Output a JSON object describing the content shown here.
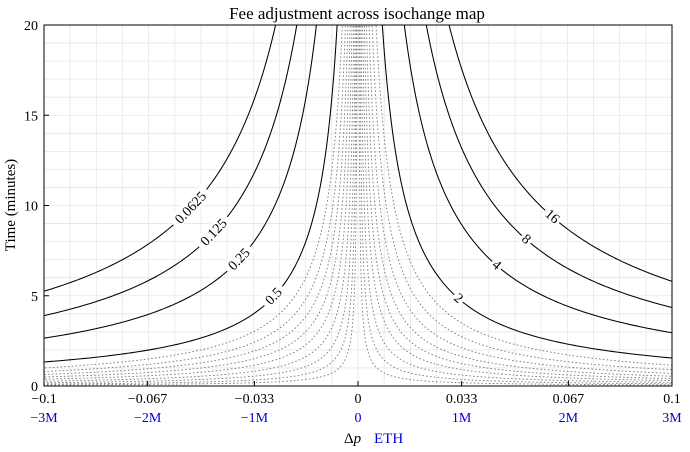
{
  "chart_data": {
    "type": "line",
    "title": "Fee adjustment across isochange map",
    "xlabel": "Δp",
    "xlabel_symbol": "Δ",
    "xlabel_var": "p",
    "xlabel_secondary": "ETH",
    "ylabel": "Time (minutes)",
    "xlim": [
      -0.1,
      0.1
    ],
    "ylim": [
      0,
      20
    ],
    "grid": true,
    "x_ticks": [
      -0.1,
      -0.067,
      -0.033,
      0,
      0.033,
      0.067,
      0.1
    ],
    "x_tick_labels": [
      "−0.1",
      "−0.067",
      "−0.033",
      "0",
      "0.033",
      "0.067",
      "0.1"
    ],
    "x2_tick_labels": [
      "−3M",
      "−2M",
      "−1M",
      "0",
      "1M",
      "2M",
      "3M"
    ],
    "x2_color": "#0000dd",
    "y_ticks": [
      0,
      5,
      10,
      15,
      20
    ],
    "y_tick_labels": [
      "0",
      "5",
      "10",
      "15",
      "20"
    ],
    "curve_model": "time = k / |Δp|",
    "series": [
      {
        "name": "0.0625",
        "side": "left",
        "k": 0.525,
        "style": "solid",
        "label": "0.0625"
      },
      {
        "name": "0.125",
        "side": "left",
        "k": 0.39,
        "style": "solid",
        "label": "0.125"
      },
      {
        "name": "0.25",
        "side": "left",
        "k": 0.265,
        "style": "solid",
        "label": "0.25"
      },
      {
        "name": "0.5",
        "side": "left",
        "k": 0.133,
        "style": "solid",
        "label": "0.5"
      },
      {
        "name": "16",
        "side": "right",
        "k": 0.58,
        "style": "solid",
        "label": "16"
      },
      {
        "name": "8",
        "side": "right",
        "k": 0.435,
        "style": "solid",
        "label": "8"
      },
      {
        "name": "4",
        "side": "right",
        "k": 0.295,
        "style": "solid",
        "label": "4"
      },
      {
        "name": "2",
        "side": "right",
        "k": 0.155,
        "style": "solid",
        "label": "2"
      },
      {
        "name": "dotted-l1",
        "side": "left",
        "k": 0.1,
        "style": "dotted"
      },
      {
        "name": "dotted-l2",
        "side": "left",
        "k": 0.08,
        "style": "dotted"
      },
      {
        "name": "dotted-l3",
        "side": "left",
        "k": 0.064,
        "style": "dotted"
      },
      {
        "name": "dotted-l4",
        "side": "left",
        "k": 0.05,
        "style": "dotted"
      },
      {
        "name": "dotted-l5",
        "side": "left",
        "k": 0.038,
        "style": "dotted"
      },
      {
        "name": "dotted-l6",
        "side": "left",
        "k": 0.027,
        "style": "dotted"
      },
      {
        "name": "dotted-l7",
        "side": "left",
        "k": 0.018,
        "style": "dotted"
      },
      {
        "name": "dotted-l8",
        "side": "left",
        "k": 0.011,
        "style": "dotted"
      },
      {
        "name": "dotted-l9",
        "side": "left",
        "k": 0.006,
        "style": "dotted"
      },
      {
        "name": "dotted-r1",
        "side": "right",
        "k": 0.115,
        "style": "dotted"
      },
      {
        "name": "dotted-r2",
        "side": "right",
        "k": 0.09,
        "style": "dotted"
      },
      {
        "name": "dotted-r3",
        "side": "right",
        "k": 0.07,
        "style": "dotted"
      },
      {
        "name": "dotted-r4",
        "side": "right",
        "k": 0.054,
        "style": "dotted"
      },
      {
        "name": "dotted-r5",
        "side": "right",
        "k": 0.041,
        "style": "dotted"
      },
      {
        "name": "dotted-r6",
        "side": "right",
        "k": 0.03,
        "style": "dotted"
      },
      {
        "name": "dotted-r7",
        "side": "right",
        "k": 0.02,
        "style": "dotted"
      },
      {
        "name": "dotted-r8",
        "side": "right",
        "k": 0.012,
        "style": "dotted"
      },
      {
        "name": "dotted-r9",
        "side": "right",
        "k": 0.006,
        "style": "dotted"
      }
    ]
  }
}
